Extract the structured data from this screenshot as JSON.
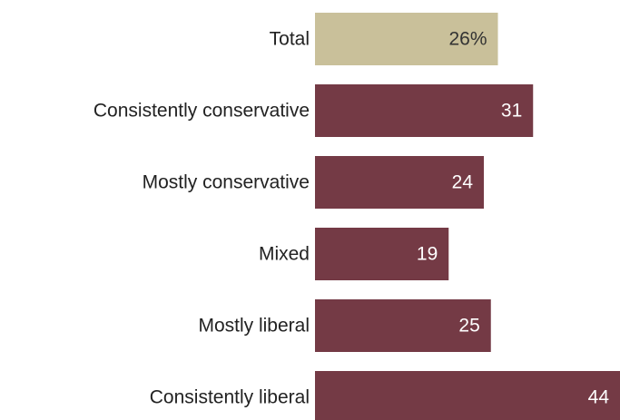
{
  "chart_data": {
    "type": "bar",
    "orientation": "horizontal",
    "title": "",
    "xlabel": "",
    "ylabel": "",
    "xlim": [
      0,
      48
    ],
    "categories": [
      "Total",
      "Consistently conservative",
      "Mostly conservative",
      "Mixed",
      "Mostly liberal",
      "Consistently liberal"
    ],
    "values": [
      26,
      31,
      24,
      19,
      25,
      44
    ],
    "value_labels": [
      "26%",
      "31",
      "24",
      "19",
      "25",
      "44"
    ],
    "bar_colors": [
      "#c9c09a",
      "#743a45",
      "#743a45",
      "#743a45",
      "#743a45",
      "#743a45"
    ],
    "value_label_colors": [
      "#333333",
      "#ffffff",
      "#ffffff",
      "#ffffff",
      "#ffffff",
      "#ffffff"
    ],
    "grid": false,
    "legend": "none"
  }
}
